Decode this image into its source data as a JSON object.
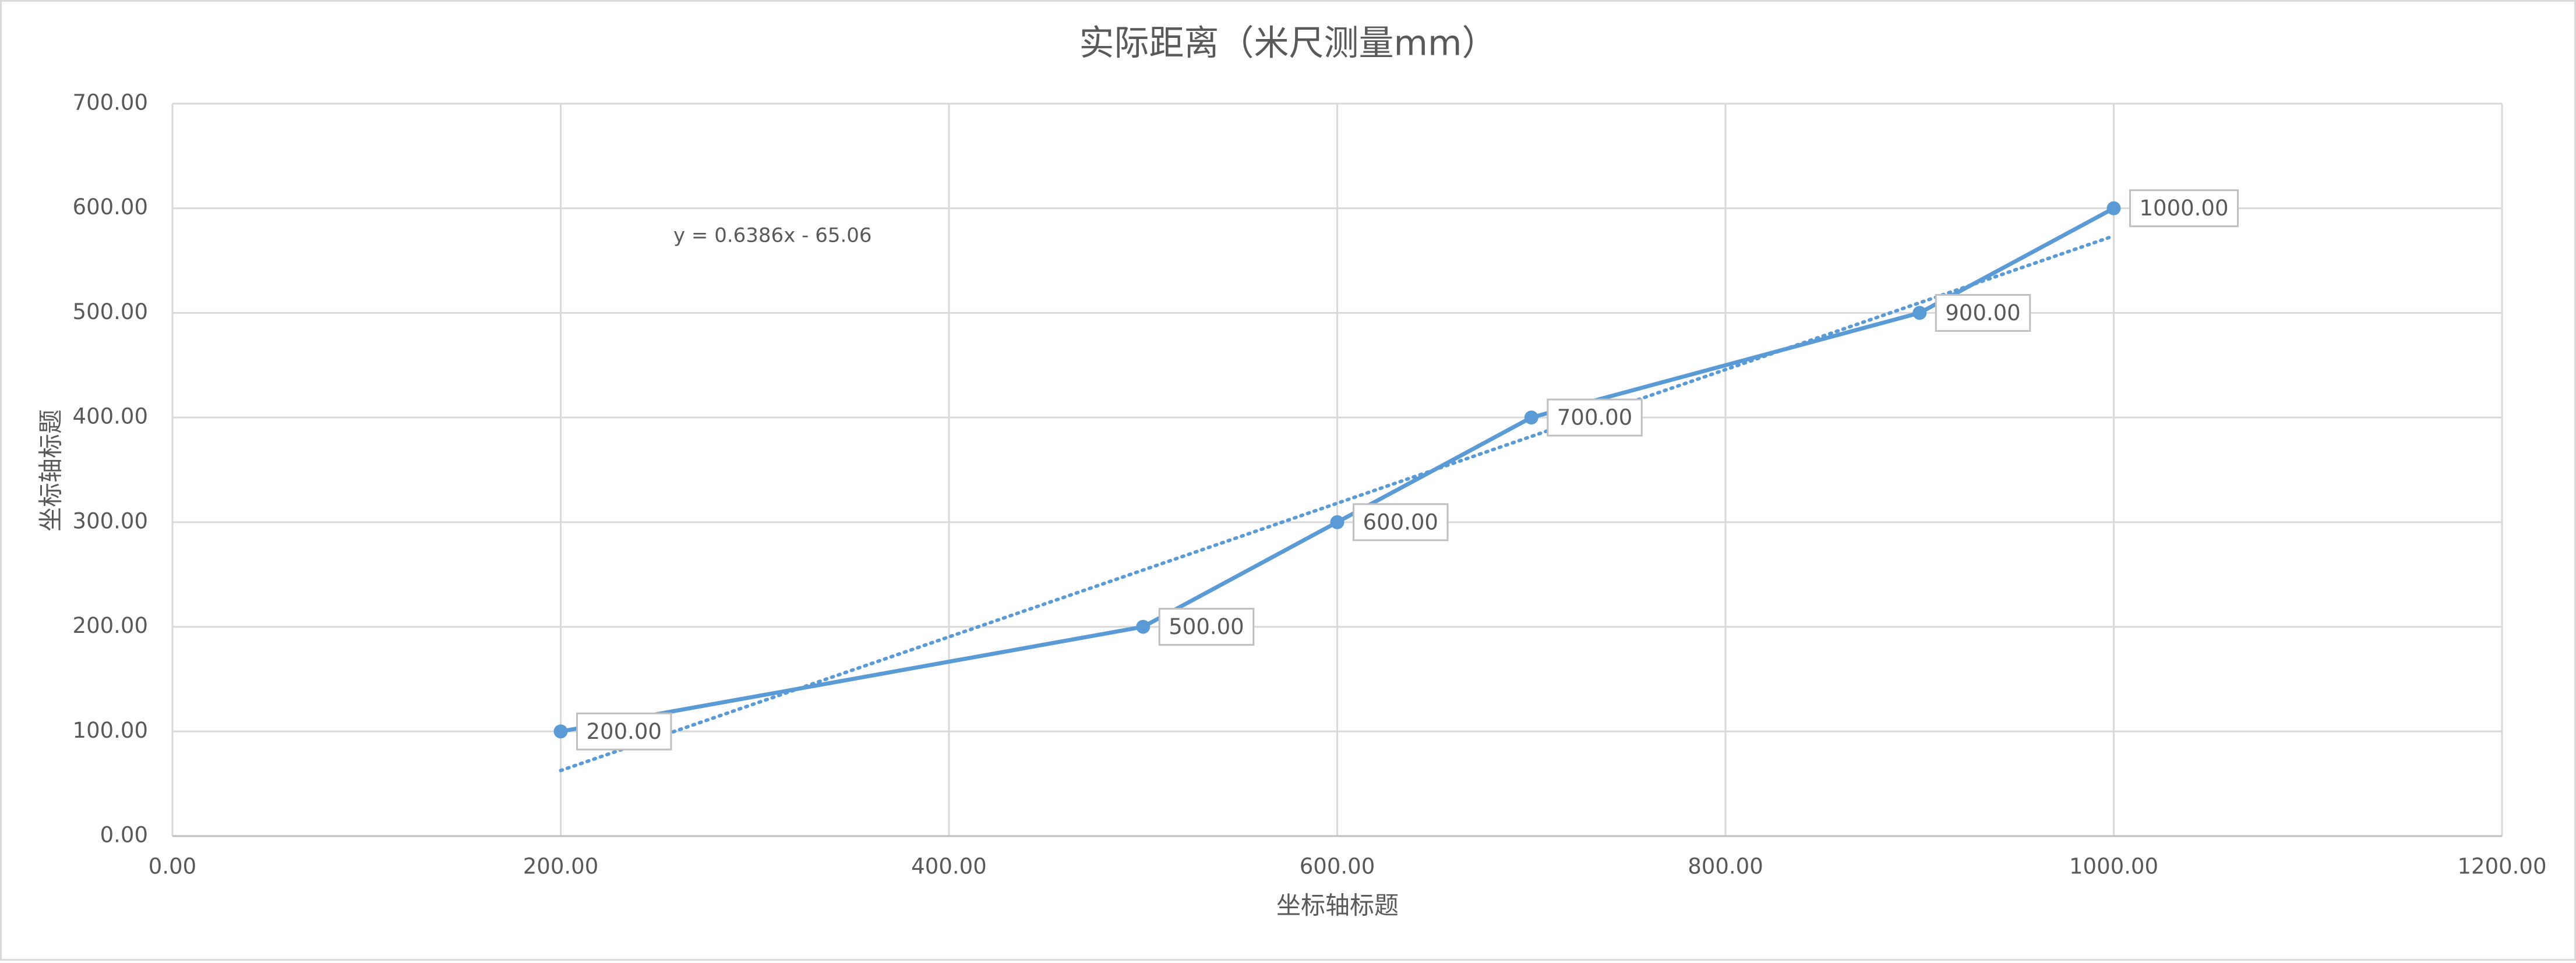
{
  "chart_data": {
    "type": "scatter",
    "title": "实际距离（米尺测量mm）",
    "x_label": "坐标轴标题",
    "y_label": "坐标轴标题",
    "x": [
      200,
      500,
      600,
      700,
      900,
      1000
    ],
    "series": [
      {
        "name": "实际距离（米尺测量mm）",
        "color": "#5b9bd5",
        "values": [
          100,
          200,
          300,
          400,
          500,
          600
        ],
        "value_labels": [
          "200.00",
          "500.00",
          "600.00",
          "700.00",
          "900.00",
          "1000.00"
        ]
      }
    ],
    "trendline": {
      "slope": 0.6386,
      "intercept": -65.06,
      "label": "y = 0.6386x - 65.06"
    },
    "xlim": [
      0,
      1200
    ],
    "ylim": [
      0,
      700
    ],
    "xticks": [
      {
        "value": 0,
        "label": "0.00"
      },
      {
        "value": 200,
        "label": "200.00"
      },
      {
        "value": 400,
        "label": "400.00"
      },
      {
        "value": 600,
        "label": "600.00"
      },
      {
        "value": 800,
        "label": "800.00"
      },
      {
        "value": 1000,
        "label": "1000.00"
      },
      {
        "value": 1200,
        "label": "1200.00"
      }
    ],
    "yticks": [
      {
        "value": 0,
        "label": "0.00"
      },
      {
        "value": 100,
        "label": "100.00"
      },
      {
        "value": 200,
        "label": "200.00"
      },
      {
        "value": 300,
        "label": "300.00"
      },
      {
        "value": 400,
        "label": "400.00"
      },
      {
        "value": 500,
        "label": "500.00"
      },
      {
        "value": 600,
        "label": "600.00"
      },
      {
        "value": 700,
        "label": "700.00"
      }
    ],
    "grid": true
  }
}
